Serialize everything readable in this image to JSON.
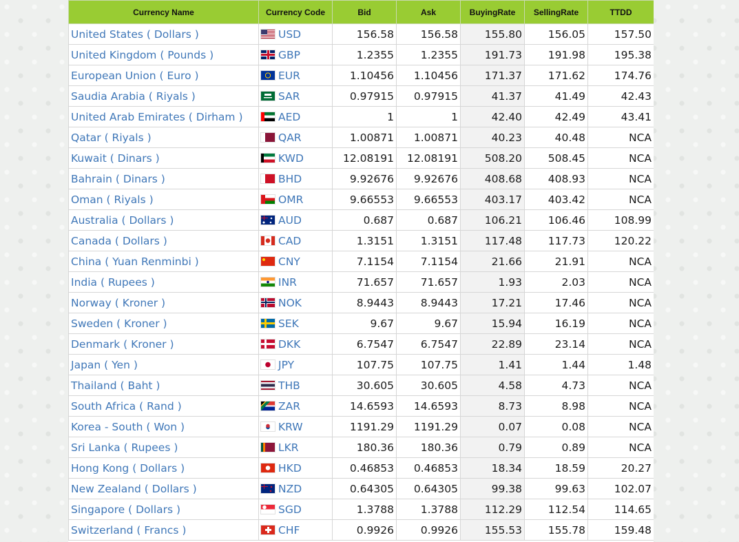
{
  "headers": {
    "name": "Currency Name",
    "code": "Currency Code",
    "bid": "Bid",
    "ask": "Ask",
    "buying": "BuyingRate",
    "selling": "SellingRate",
    "ttdd": "TTDD"
  },
  "rows": [
    {
      "name": "United States ( Dollars )",
      "code": "USD",
      "flag": "us-flag",
      "bid": "156.58",
      "ask": "156.58",
      "buying": "155.80",
      "selling": "156.05",
      "ttdd": "157.50"
    },
    {
      "name": "United Kingdom ( Pounds )",
      "code": "GBP",
      "flag": "uk-flag",
      "bid": "1.2355",
      "ask": "1.2355",
      "buying": "191.73",
      "selling": "191.98",
      "ttdd": "195.38"
    },
    {
      "name": "European Union ( Euro )",
      "code": "EUR",
      "flag": "eu-flag",
      "bid": "1.10456",
      "ask": "1.10456",
      "buying": "171.37",
      "selling": "171.62",
      "ttdd": "174.76"
    },
    {
      "name": "Saudia Arabia ( Riyals )",
      "code": "SAR",
      "flag": "saudi-flag",
      "bid": "0.97915",
      "ask": "0.97915",
      "buying": "41.37",
      "selling": "41.49",
      "ttdd": "42.43"
    },
    {
      "name": "United Arab Emirates ( Dirham )",
      "code": "AED",
      "flag": "uae-flag",
      "bid": "1",
      "ask": "1",
      "buying": "42.40",
      "selling": "42.49",
      "ttdd": "43.41"
    },
    {
      "name": "Qatar ( Riyals )",
      "code": "QAR",
      "flag": "qatar-flag",
      "bid": "1.00871",
      "ask": "1.00871",
      "buying": "40.23",
      "selling": "40.48",
      "ttdd": "NCA"
    },
    {
      "name": "Kuwait ( Dinars )",
      "code": "KWD",
      "flag": "kuwait-flag",
      "bid": "12.08191",
      "ask": "12.08191",
      "buying": "508.20",
      "selling": "508.45",
      "ttdd": "NCA"
    },
    {
      "name": "Bahrain ( Dinars )",
      "code": "BHD",
      "flag": "bahrain-flag",
      "bid": "9.92676",
      "ask": "9.92676",
      "buying": "408.68",
      "selling": "408.93",
      "ttdd": "NCA"
    },
    {
      "name": "Oman ( Riyals )",
      "code": "OMR",
      "flag": "oman-flag",
      "bid": "9.66553",
      "ask": "9.66553",
      "buying": "403.17",
      "selling": "403.42",
      "ttdd": "NCA"
    },
    {
      "name": "Australia ( Dollars )",
      "code": "AUD",
      "flag": "australia-flag",
      "bid": "0.687",
      "ask": "0.687",
      "buying": "106.21",
      "selling": "106.46",
      "ttdd": "108.99"
    },
    {
      "name": "Canada ( Dollars )",
      "code": "CAD",
      "flag": "canada-flag",
      "bid": "1.3151",
      "ask": "1.3151",
      "buying": "117.48",
      "selling": "117.73",
      "ttdd": "120.22"
    },
    {
      "name": "China ( Yuan Renminbi )",
      "code": "CNY",
      "flag": "china-flag",
      "bid": "7.1154",
      "ask": "7.1154",
      "buying": "21.66",
      "selling": "21.91",
      "ttdd": "NCA"
    },
    {
      "name": "India ( Rupees )",
      "code": "INR",
      "flag": "india-flag",
      "bid": "71.657",
      "ask": "71.657",
      "buying": "1.93",
      "selling": "2.03",
      "ttdd": "NCA"
    },
    {
      "name": "Norway ( Kroner )",
      "code": "NOK",
      "flag": "norway-flag",
      "bid": "8.9443",
      "ask": "8.9443",
      "buying": "17.21",
      "selling": "17.46",
      "ttdd": "NCA"
    },
    {
      "name": "Sweden ( Kroner )",
      "code": "SEK",
      "flag": "sweden-flag",
      "bid": "9.67",
      "ask": "9.67",
      "buying": "15.94",
      "selling": "16.19",
      "ttdd": "NCA"
    },
    {
      "name": "Denmark ( Kroner )",
      "code": "DKK",
      "flag": "denmark-flag",
      "bid": "6.7547",
      "ask": "6.7547",
      "buying": "22.89",
      "selling": "23.14",
      "ttdd": "NCA"
    },
    {
      "name": "Japan ( Yen )",
      "code": "JPY",
      "flag": "japan-flag",
      "bid": "107.75",
      "ask": "107.75",
      "buying": "1.41",
      "selling": "1.44",
      "ttdd": "1.48"
    },
    {
      "name": "Thailand ( Baht )",
      "code": "THB",
      "flag": "thailand-flag",
      "bid": "30.605",
      "ask": "30.605",
      "buying": "4.58",
      "selling": "4.73",
      "ttdd": "NCA"
    },
    {
      "name": "South Africa ( Rand )",
      "code": "ZAR",
      "flag": "south-africa-flag",
      "bid": "14.6593",
      "ask": "14.6593",
      "buying": "8.73",
      "selling": "8.98",
      "ttdd": "NCA"
    },
    {
      "name": "Korea - South ( Won )",
      "code": "KRW",
      "flag": "south-korea-flag",
      "bid": "1191.29",
      "ask": "1191.29",
      "buying": "0.07",
      "selling": "0.08",
      "ttdd": "NCA"
    },
    {
      "name": "Sri Lanka ( Rupees )",
      "code": "LKR",
      "flag": "sri-lanka-flag",
      "bid": "180.36",
      "ask": "180.36",
      "buying": "0.79",
      "selling": "0.89",
      "ttdd": "NCA"
    },
    {
      "name": "Hong Kong ( Dollars )",
      "code": "HKD",
      "flag": "hong-kong-flag",
      "bid": "0.46853",
      "ask": "0.46853",
      "buying": "18.34",
      "selling": "18.59",
      "ttdd": "20.27"
    },
    {
      "name": "New Zealand ( Dollars )",
      "code": "NZD",
      "flag": "new-zealand-flag",
      "bid": "0.64305",
      "ask": "0.64305",
      "buying": "99.38",
      "selling": "99.63",
      "ttdd": "102.07"
    },
    {
      "name": "Singapore ( Dollars )",
      "code": "SGD",
      "flag": "singapore-flag",
      "bid": "1.3788",
      "ask": "1.3788",
      "buying": "112.29",
      "selling": "112.54",
      "ttdd": "114.65"
    },
    {
      "name": "Switzerland ( Francs )",
      "code": "CHF",
      "flag": "switzerland-flag",
      "bid": "0.9926",
      "ask": "0.9926",
      "buying": "155.53",
      "selling": "155.78",
      "ttdd": "159.48"
    }
  ],
  "colors": {
    "header_bg": "#99cc33",
    "link": "#3f77b8",
    "shaded_column": "#f2f2f2"
  }
}
